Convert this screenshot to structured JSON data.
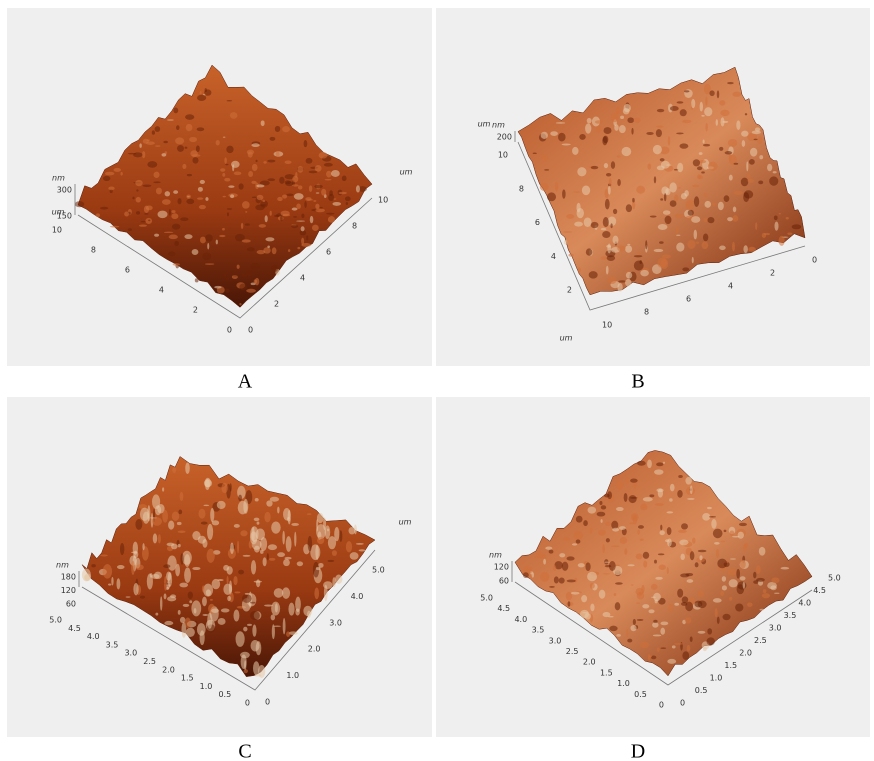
{
  "panels": [
    {
      "caption": "A",
      "z_unit": "nm",
      "z_ticks": [
        "300",
        "150"
      ],
      "z_axis_unit": "um",
      "left_ticks": [
        "10",
        "8",
        "6",
        "4",
        "2",
        "0"
      ],
      "right_ticks": [
        "0",
        "2",
        "4",
        "6",
        "8",
        "10"
      ],
      "right_unit": "um"
    },
    {
      "caption": "B",
      "z_unit": "nm",
      "z_ticks": [
        "200"
      ],
      "z_axis_unit": "um",
      "left_ticks": [
        "10",
        "8",
        "6",
        "4",
        "2"
      ],
      "right_ticks": [
        "10",
        "8",
        "6",
        "4",
        "2",
        "0"
      ],
      "right_unit": "um"
    },
    {
      "caption": "C",
      "z_unit": "nm",
      "z_ticks": [
        "180",
        "120",
        "60"
      ],
      "left_ticks": [
        "5.0",
        "4.5",
        "4.0",
        "3.5",
        "3.0",
        "2.5",
        "2.0",
        "1.5",
        "1.0",
        "0.5",
        "0"
      ],
      "right_ticks": [
        "0",
        "1.0",
        "2.0",
        "3.0",
        "4.0",
        "5.0"
      ],
      "right_unit": "um"
    },
    {
      "caption": "D",
      "z_unit": "nm",
      "z_ticks": [
        "120",
        "60"
      ],
      "left_ticks": [
        "5.0",
        "4.5",
        "4.0",
        "3.5",
        "3.0",
        "2.5",
        "2.0",
        "1.5",
        "1.0",
        "0.5",
        "0"
      ],
      "right_ticks": [
        "0",
        "0.5",
        "1.0",
        "1.5",
        "2.0",
        "2.5",
        "3.0",
        "3.5",
        "4.0",
        "4.5",
        "5.0"
      ]
    }
  ]
}
